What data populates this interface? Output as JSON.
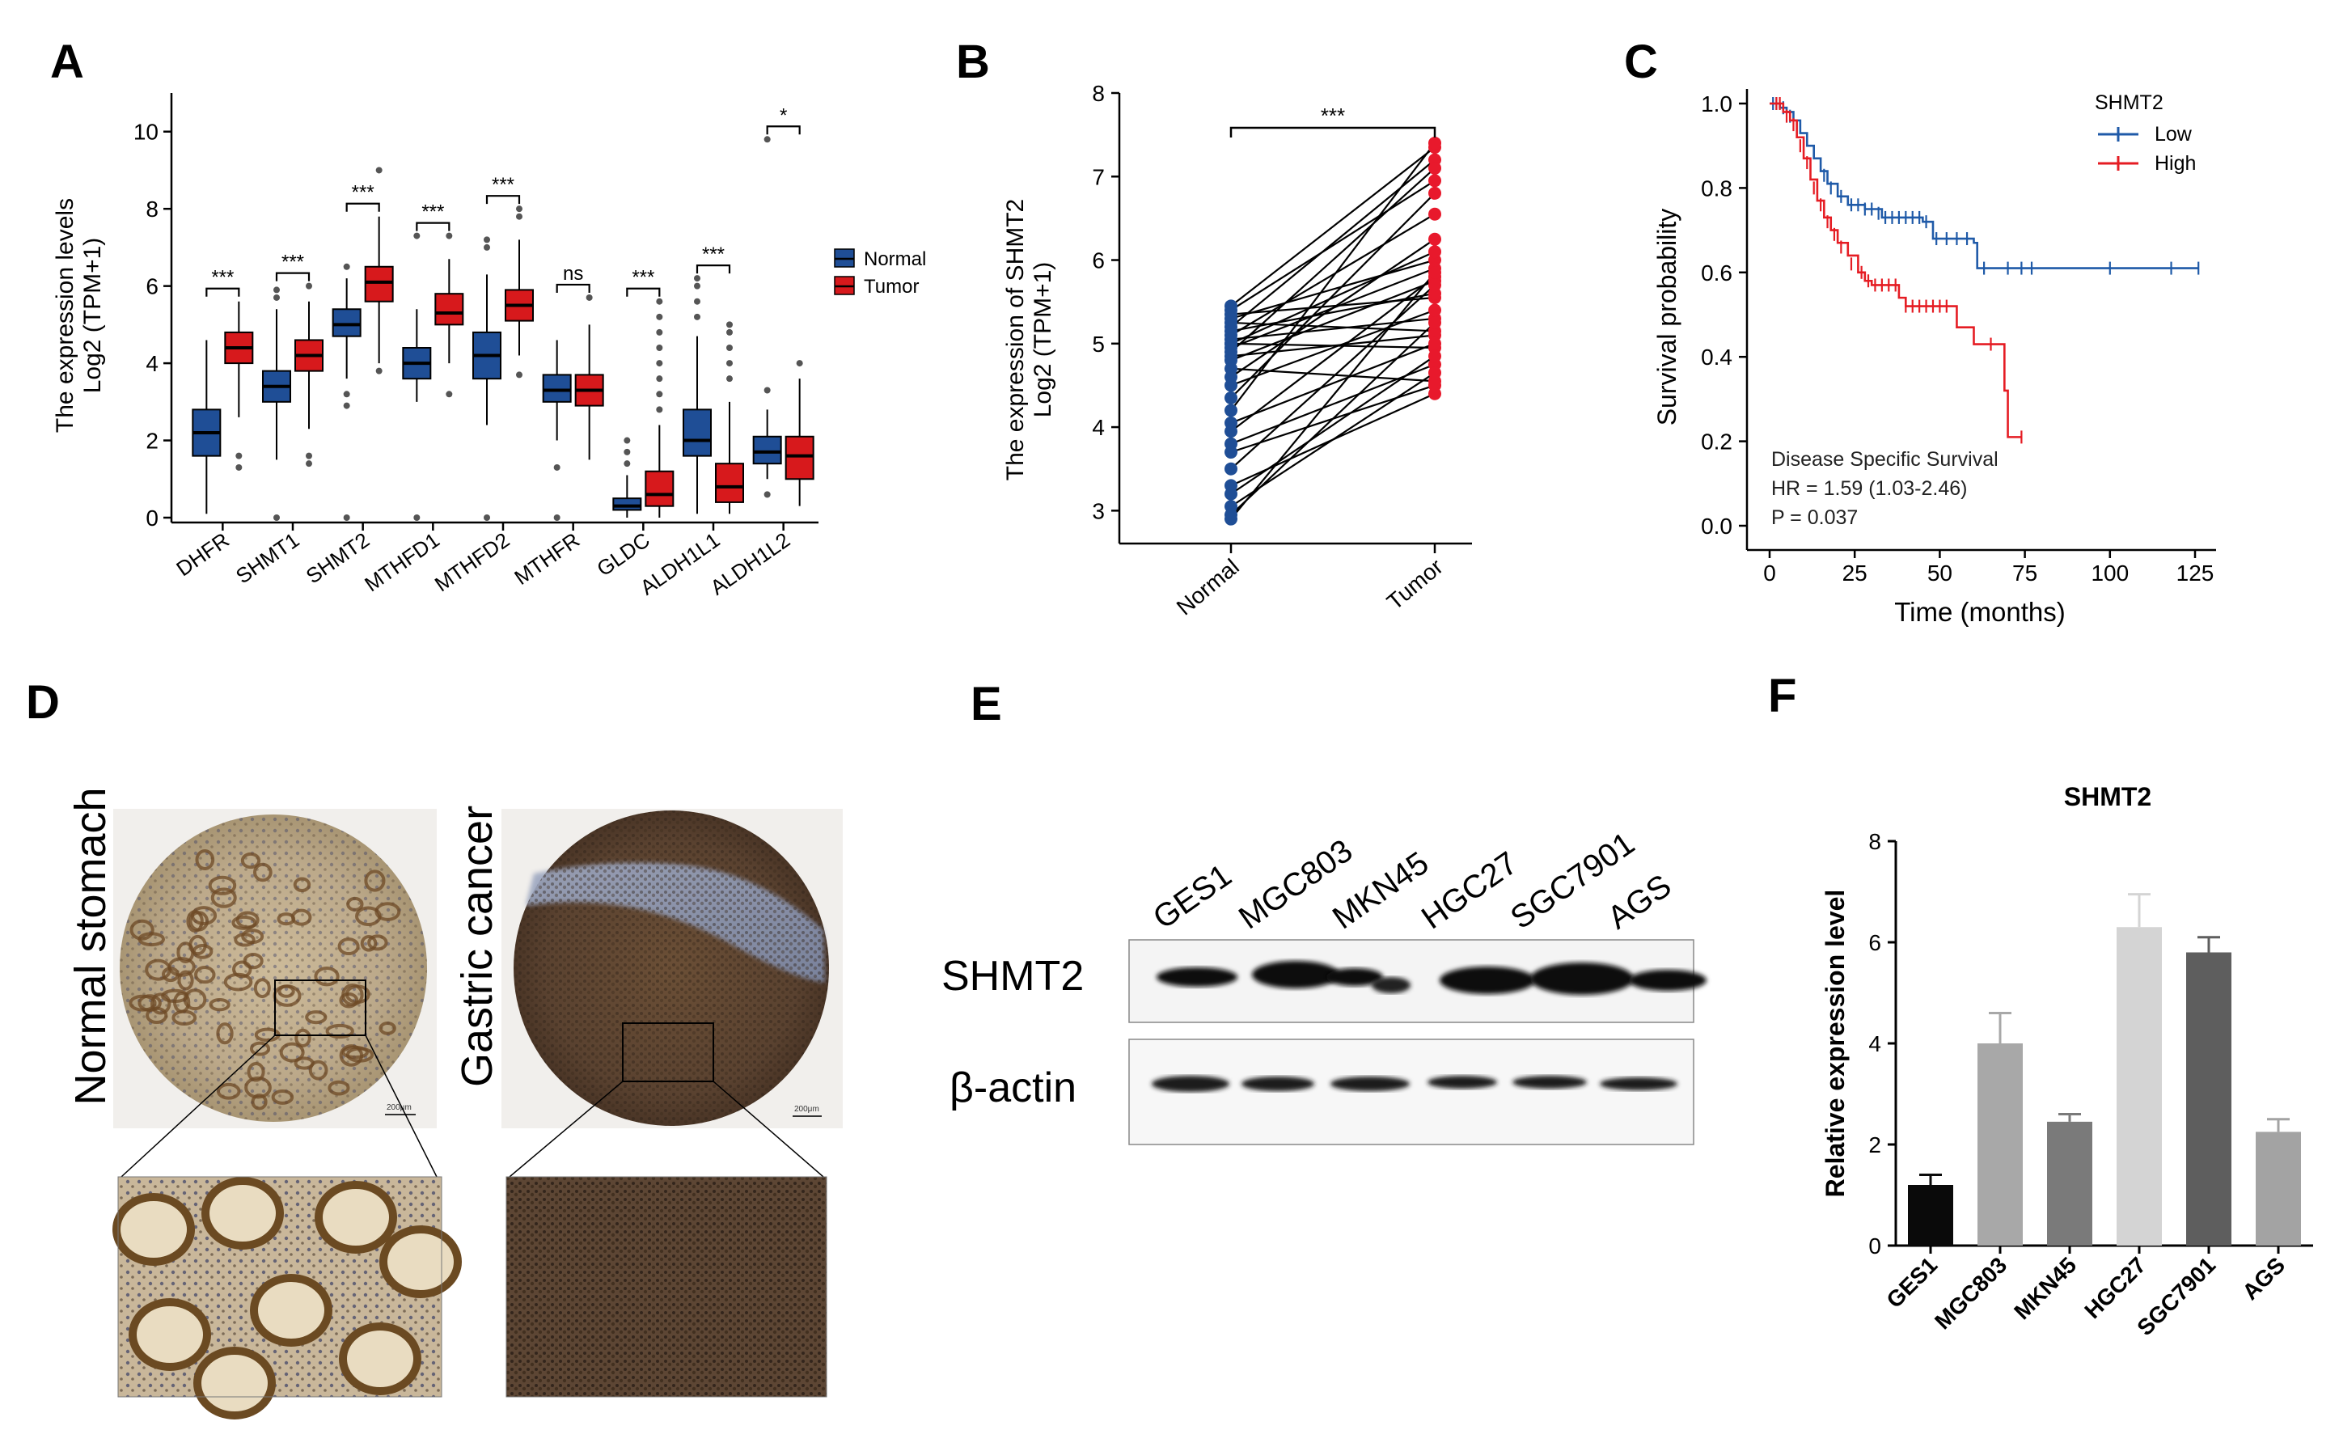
{
  "panel_letters": [
    "A",
    "B",
    "C",
    "D",
    "E",
    "F"
  ],
  "chart_data": [
    {
      "panel": "A",
      "type": "box",
      "ylabel_line1": "The expression levels",
      "ylabel_line2": "Log2 (TPM+1)",
      "ylim": [
        0,
        11
      ],
      "yticks": [
        0,
        2,
        4,
        6,
        8,
        10
      ],
      "legend": [
        {
          "name": "Normal",
          "color": "#1f4e96"
        },
        {
          "name": "Tumor",
          "color": "#d7191c"
        }
      ],
      "categories": [
        "DHFR",
        "SHMT1",
        "SHMT2",
        "MTHFD1",
        "MTHFD2",
        "MTHFR",
        "GLDC",
        "ALDH1L1",
        "ALDH1L2"
      ],
      "significance": [
        "***",
        "***",
        "***",
        "***",
        "***",
        "ns",
        "***",
        "***",
        "*"
      ],
      "normal": [
        {
          "min": 0.1,
          "q1": 1.6,
          "median": 2.2,
          "q3": 2.8,
          "max": 4.6,
          "outliers": []
        },
        {
          "min": 1.5,
          "q1": 3.0,
          "median": 3.4,
          "q3": 3.8,
          "max": 5.4,
          "outliers": [
            0.0,
            5.9,
            5.7
          ]
        },
        {
          "min": 3.6,
          "q1": 4.7,
          "median": 5.0,
          "q3": 5.4,
          "max": 6.2,
          "outliers": [
            0.0,
            3.2,
            2.9,
            6.5
          ]
        },
        {
          "min": 3.0,
          "q1": 3.6,
          "median": 4.0,
          "q3": 4.4,
          "max": 5.4,
          "outliers": [
            0.0,
            7.3
          ]
        },
        {
          "min": 2.4,
          "q1": 3.6,
          "median": 4.2,
          "q3": 4.8,
          "max": 6.3,
          "outliers": [
            0.0,
            7.2,
            7.0
          ]
        },
        {
          "min": 2.0,
          "q1": 3.0,
          "median": 3.3,
          "q3": 3.7,
          "max": 4.6,
          "outliers": [
            0.0,
            1.3
          ]
        },
        {
          "min": 0.0,
          "q1": 0.2,
          "median": 0.3,
          "q3": 0.5,
          "max": 1.1,
          "outliers": [
            1.4,
            1.7,
            2.0
          ]
        },
        {
          "min": 0.1,
          "q1": 1.6,
          "median": 2.0,
          "q3": 2.8,
          "max": 4.7,
          "outliers": [
            5.2,
            5.6,
            6.0,
            6.2
          ]
        },
        {
          "min": 1.0,
          "q1": 1.4,
          "median": 1.7,
          "q3": 2.1,
          "max": 2.8,
          "outliers": [
            9.8,
            3.3,
            0.6
          ]
        }
      ],
      "tumor": [
        {
          "min": 2.6,
          "q1": 4.0,
          "median": 4.4,
          "q3": 4.8,
          "max": 5.6,
          "outliers": [
            1.6,
            1.3
          ]
        },
        {
          "min": 2.3,
          "q1": 3.8,
          "median": 4.2,
          "q3": 4.6,
          "max": 5.6,
          "outliers": [
            1.6,
            1.4,
            6.0
          ]
        },
        {
          "min": 4.0,
          "q1": 5.6,
          "median": 6.1,
          "q3": 6.5,
          "max": 7.8,
          "outliers": [
            3.8,
            9.0
          ]
        },
        {
          "min": 4.0,
          "q1": 5.0,
          "median": 5.3,
          "q3": 5.8,
          "max": 6.7,
          "outliers": [
            3.2,
            7.3
          ]
        },
        {
          "min": 4.2,
          "q1": 5.1,
          "median": 5.5,
          "q3": 5.9,
          "max": 7.2,
          "outliers": [
            3.7,
            7.8,
            8.0
          ]
        },
        {
          "min": 1.5,
          "q1": 2.9,
          "median": 3.3,
          "q3": 3.7,
          "max": 5.0,
          "outliers": [
            5.7
          ]
        },
        {
          "min": 0.0,
          "q1": 0.3,
          "median": 0.6,
          "q3": 1.2,
          "max": 2.4,
          "outliers": [
            2.8,
            3.2,
            3.6,
            4.0,
            4.4,
            4.8,
            5.2,
            5.6
          ]
        },
        {
          "min": 0.1,
          "q1": 0.4,
          "median": 0.8,
          "q3": 1.4,
          "max": 3.0,
          "outliers": [
            3.6,
            4.0,
            4.4,
            4.8,
            5.0
          ]
        },
        {
          "min": 0.3,
          "q1": 1.0,
          "median": 1.6,
          "q3": 2.1,
          "max": 3.6,
          "outliers": [
            4.0
          ]
        }
      ]
    },
    {
      "panel": "B",
      "type": "paired-line",
      "title": "***",
      "ylabel_line1": "The expression of SHMT2",
      "ylabel_line2": "Log2 (TPM+1)",
      "ylim": [
        2.8,
        8.0
      ],
      "yticks": [
        3,
        4,
        5,
        6,
        7,
        8
      ],
      "categories": [
        "Normal",
        "Tumor"
      ],
      "colors": {
        "Normal": "#1f4e96",
        "Tumor": "#e8192c"
      },
      "pairs": [
        [
          5.45,
          7.35
        ],
        [
          5.4,
          6.95
        ],
        [
          5.35,
          5.55
        ],
        [
          5.3,
          6.0
        ],
        [
          5.25,
          5.15
        ],
        [
          5.2,
          7.2
        ],
        [
          5.15,
          5.6
        ],
        [
          5.1,
          6.55
        ],
        [
          5.05,
          5.3
        ],
        [
          5.0,
          4.95
        ],
        [
          4.95,
          5.9
        ],
        [
          4.9,
          7.1
        ],
        [
          4.85,
          5.1
        ],
        [
          4.8,
          5.75
        ],
        [
          4.7,
          4.55
        ],
        [
          4.6,
          6.25
        ],
        [
          4.5,
          5.4
        ],
        [
          4.35,
          6.8
        ],
        [
          4.05,
          5.0
        ],
        [
          3.95,
          5.8
        ],
        [
          3.8,
          4.75
        ],
        [
          3.7,
          4.5
        ],
        [
          3.3,
          4.4
        ],
        [
          3.2,
          4.85
        ],
        [
          3.05,
          4.65
        ],
        [
          2.95,
          5.25
        ],
        [
          2.9,
          5.85
        ],
        [
          4.2,
          7.4
        ],
        [
          5.0,
          6.1
        ],
        [
          3.5,
          5.7
        ]
      ]
    },
    {
      "panel": "C",
      "type": "kaplan-meier",
      "xlabel": "Time (months)",
      "ylabel": "Survival probability",
      "xlim": [
        0,
        125
      ],
      "ylim": [
        0,
        1.0
      ],
      "xticks": [
        0,
        25,
        50,
        75,
        100,
        125
      ],
      "yticks": [
        "0.0",
        "0.2",
        "0.4",
        "0.6",
        "0.8",
        "1.0"
      ],
      "legend_title": "SHMT2",
      "series": [
        {
          "name": "Low",
          "color": "#1f5aa8",
          "steps": [
            [
              0,
              1.0
            ],
            [
              3,
              0.99
            ],
            [
              5,
              0.98
            ],
            [
              7,
              0.96
            ],
            [
              9,
              0.93
            ],
            [
              11,
              0.9
            ],
            [
              13,
              0.87
            ],
            [
              15,
              0.84
            ],
            [
              17,
              0.81
            ],
            [
              20,
              0.78
            ],
            [
              23,
              0.76
            ],
            [
              28,
              0.75
            ],
            [
              33,
              0.73
            ],
            [
              40,
              0.73
            ],
            [
              45,
              0.72
            ],
            [
              48,
              0.68
            ],
            [
              60,
              0.67
            ],
            [
              61,
              0.61
            ],
            [
              126,
              0.61
            ]
          ],
          "censors": [
            [
              1,
              1.0
            ],
            [
              2,
              1.0
            ],
            [
              4,
              0.99
            ],
            [
              6,
              0.97
            ],
            [
              16,
              0.83
            ],
            [
              18,
              0.8
            ],
            [
              21,
              0.78
            ],
            [
              24,
              0.76
            ],
            [
              26,
              0.76
            ],
            [
              28,
              0.75
            ],
            [
              30,
              0.75
            ],
            [
              32,
              0.74
            ],
            [
              34,
              0.73
            ],
            [
              36,
              0.73
            ],
            [
              38,
              0.73
            ],
            [
              40,
              0.73
            ],
            [
              42,
              0.73
            ],
            [
              44,
              0.73
            ],
            [
              46,
              0.72
            ],
            [
              49,
              0.68
            ],
            [
              52,
              0.68
            ],
            [
              55,
              0.68
            ],
            [
              58,
              0.68
            ],
            [
              63,
              0.61
            ],
            [
              70,
              0.61
            ],
            [
              74,
              0.61
            ],
            [
              77,
              0.61
            ],
            [
              100,
              0.61
            ],
            [
              118,
              0.61
            ],
            [
              126,
              0.61
            ]
          ]
        },
        {
          "name": "High",
          "color": "#e51c23",
          "steps": [
            [
              0,
              1.0
            ],
            [
              4,
              0.98
            ],
            [
              6,
              0.96
            ],
            [
              8,
              0.92
            ],
            [
              10,
              0.87
            ],
            [
              12,
              0.82
            ],
            [
              14,
              0.77
            ],
            [
              16,
              0.73
            ],
            [
              18,
              0.7
            ],
            [
              20,
              0.67
            ],
            [
              23,
              0.64
            ],
            [
              26,
              0.6
            ],
            [
              28,
              0.58
            ],
            [
              30,
              0.57
            ],
            [
              38,
              0.54
            ],
            [
              40,
              0.52
            ],
            [
              55,
              0.47
            ],
            [
              60,
              0.43
            ],
            [
              67,
              0.43
            ],
            [
              69,
              0.32
            ],
            [
              70,
              0.21
            ],
            [
              74,
              0.21
            ]
          ],
          "censors": [
            [
              2,
              1.0
            ],
            [
              3,
              1.0
            ],
            [
              5,
              0.97
            ],
            [
              7,
              0.95
            ],
            [
              9,
              0.9
            ],
            [
              11,
              0.86
            ],
            [
              13,
              0.8
            ],
            [
              15,
              0.76
            ],
            [
              17,
              0.72
            ],
            [
              19,
              0.69
            ],
            [
              21,
              0.66
            ],
            [
              24,
              0.62
            ],
            [
              27,
              0.6
            ],
            [
              29,
              0.58
            ],
            [
              31,
              0.57
            ],
            [
              33,
              0.57
            ],
            [
              35,
              0.57
            ],
            [
              37,
              0.57
            ],
            [
              40,
              0.52
            ],
            [
              42,
              0.52
            ],
            [
              44,
              0.52
            ],
            [
              46,
              0.52
            ],
            [
              48,
              0.52
            ],
            [
              50,
              0.52
            ],
            [
              52,
              0.52
            ],
            [
              65,
              0.43
            ],
            [
              74,
              0.21
            ]
          ]
        }
      ],
      "annotations": [
        "Disease Specific Survival",
        "HR = 1.59 (1.03-2.46)",
        "P = 0.037"
      ]
    },
    {
      "panel": "F",
      "type": "bar",
      "title": "SHMT2",
      "ylabel": "Relative expression level",
      "ylim": [
        0,
        8
      ],
      "yticks": [
        0,
        2,
        4,
        6,
        8
      ],
      "categories": [
        "GES1",
        "MGC803",
        "MKN45",
        "HGC27",
        "SGC7901",
        "AGS"
      ],
      "values": [
        1.2,
        4.0,
        2.45,
        6.3,
        5.8,
        2.25
      ],
      "errors": [
        0.2,
        0.6,
        0.15,
        0.65,
        0.3,
        0.25
      ],
      "colors": [
        "#0a0a0a",
        "#a8a8a8",
        "#7a7a7a",
        "#d4d4d4",
        "#5e5e5e",
        "#a3a3a3"
      ]
    }
  ],
  "panel_d": {
    "left_label": "Normal stomach",
    "right_label": "Gastric cancer",
    "scale_bar": "200μm"
  },
  "panel_e": {
    "lanes": [
      "GES1",
      "MGC803",
      "MKN45",
      "HGC27",
      "SGC7901",
      "AGS"
    ],
    "rows": [
      "SHMT2",
      "β-actin"
    ]
  }
}
